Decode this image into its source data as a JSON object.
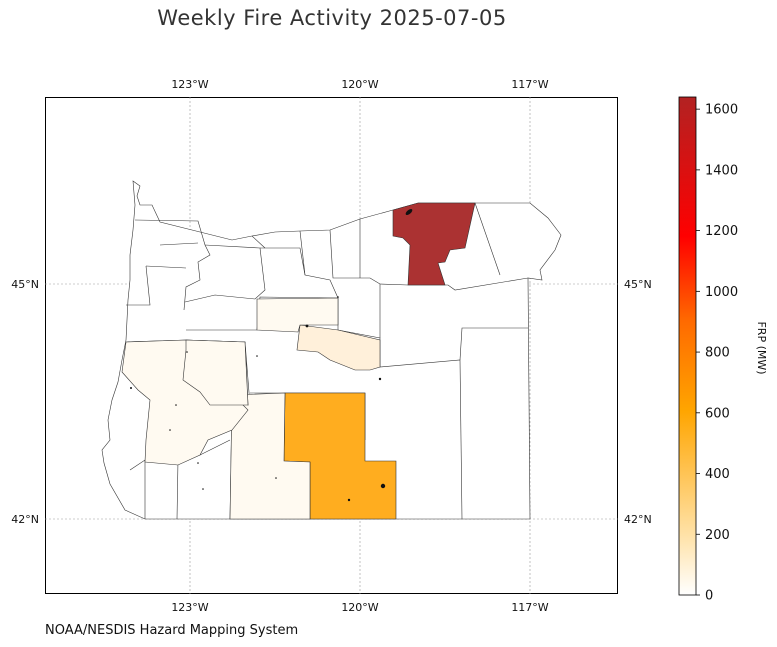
{
  "title": "Weekly Fire Activity 2025-07-05",
  "credit": "NOAA/NESDIS Hazard Mapping System",
  "lon_ticks": [
    "123°W",
    "120°W",
    "117°W"
  ],
  "lat_ticks": [
    "45°N",
    "42°N"
  ],
  "colorbar": {
    "label": "FRP (MW)",
    "ticks": [
      "0",
      "200",
      "400",
      "600",
      "800",
      "1000",
      "1200",
      "1400",
      "1600"
    ],
    "colors": [
      "#ffffff",
      "#ffd27a",
      "#ffa500",
      "#ff6a00",
      "#ff0000",
      "#b22222"
    ],
    "max_value": 1640
  },
  "counties": {
    "umatilla_frp": 1640,
    "harney_frp": 560,
    "crook_frp": 50,
    "lake_frp": 15,
    "douglas_frp": 10,
    "jefferson_frp": 8
  }
}
